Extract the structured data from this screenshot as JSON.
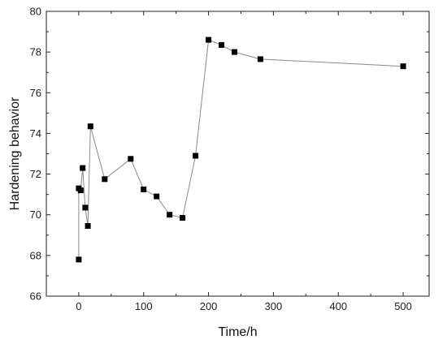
{
  "chart_data": {
    "type": "scatter",
    "xlabel": "Time/h",
    "ylabel": "Hardening behavior",
    "xlim": [
      -50,
      540
    ],
    "ylim": [
      66,
      80
    ],
    "xticks": [
      0,
      100,
      200,
      300,
      400,
      500
    ],
    "yticks": [
      66,
      68,
      70,
      72,
      74,
      76,
      78,
      80
    ],
    "grid": false,
    "legend": "none",
    "marker": "square",
    "connected": true,
    "colors": {
      "marker": "#000000",
      "line": "#8a8a8a"
    },
    "series": [
      {
        "points": [
          [
            0,
            67.8
          ],
          [
            0,
            71.3
          ],
          [
            3,
            71.2
          ],
          [
            6,
            72.3
          ],
          [
            10,
            70.35
          ],
          [
            14,
            69.45
          ],
          [
            18,
            74.35
          ],
          [
            40,
            71.75
          ],
          [
            80,
            72.75
          ],
          [
            100,
            71.25
          ],
          [
            120,
            70.9
          ],
          [
            140,
            70.0
          ],
          [
            160,
            69.85
          ],
          [
            180,
            72.9
          ],
          [
            200,
            78.6
          ],
          [
            220,
            78.35
          ],
          [
            240,
            78.0
          ],
          [
            280,
            77.65
          ],
          [
            500,
            77.3
          ]
        ]
      }
    ]
  }
}
